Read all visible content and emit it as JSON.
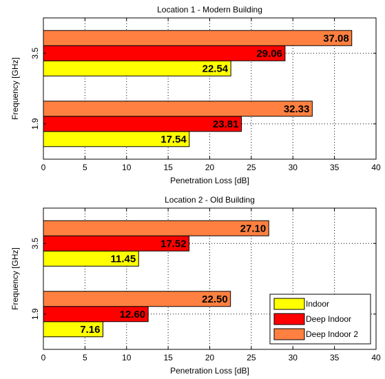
{
  "chart_data": [
    {
      "type": "bar",
      "orientation": "horizontal",
      "title": "Location 1 - Modern Building",
      "xlabel": "Penetration Loss [dB]",
      "ylabel": "Frequency [GHz]",
      "xlim": [
        0,
        40
      ],
      "xticks": [
        "0",
        "5",
        "10",
        "15",
        "20",
        "25",
        "30",
        "35",
        "40"
      ],
      "grid": true,
      "categories": [
        "1.9",
        "3.5"
      ],
      "series": [
        {
          "name": "Indoor",
          "color": "#ffff00",
          "values": [
            17.54,
            22.54
          ],
          "labels": [
            "17.54",
            "22.54"
          ]
        },
        {
          "name": "Deep Indoor",
          "color": "#ff0000",
          "values": [
            23.81,
            29.06
          ],
          "labels": [
            "23.81",
            "29.06"
          ]
        },
        {
          "name": "Deep Indoor 2",
          "color": "#ff8040",
          "values": [
            32.33,
            37.08
          ],
          "labels": [
            "32.33",
            "37.08"
          ]
        }
      ]
    },
    {
      "type": "bar",
      "orientation": "horizontal",
      "title": "Location 2 - Old Building",
      "xlabel": "Penetration Loss [dB]",
      "ylabel": "Frequency [GHz]",
      "xlim": [
        0,
        40
      ],
      "xticks": [
        "0",
        "5",
        "10",
        "15",
        "20",
        "25",
        "30",
        "35",
        "40"
      ],
      "grid": true,
      "legend": "bottom-right",
      "categories": [
        "1.9",
        "3.5"
      ],
      "series": [
        {
          "name": "Indoor",
          "color": "#ffff00",
          "values": [
            7.16,
            11.45
          ],
          "labels": [
            "7.16",
            "11.45"
          ]
        },
        {
          "name": "Deep Indoor",
          "color": "#ff0000",
          "values": [
            12.6,
            17.52
          ],
          "labels": [
            "12.60",
            "17.52"
          ]
        },
        {
          "name": "Deep Indoor 2",
          "color": "#ff8040",
          "values": [
            22.5,
            27.1
          ],
          "labels": [
            "22.50",
            "27.10"
          ]
        }
      ]
    }
  ]
}
